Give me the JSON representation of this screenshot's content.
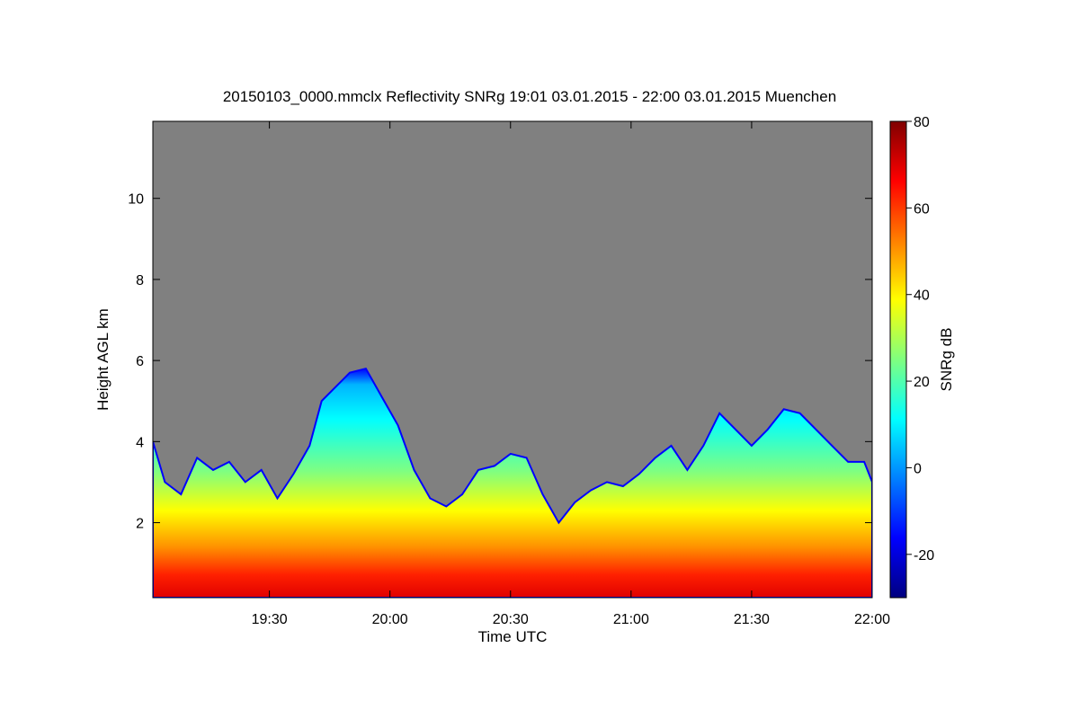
{
  "chart_data": {
    "type": "heatmap",
    "title": "20150103_0000.mmclx Reflectivity SNRg   19:01 03.01.2015 - 22:00 03.01.2015 Muenchen",
    "xlabel": "Time UTC",
    "ylabel": "Height AGL km",
    "colorbar_label": "SNRg dB",
    "x_range": [
      "19:01",
      "22:00"
    ],
    "ylim": [
      0.15,
      11.9
    ],
    "clim": [
      -30,
      80
    ],
    "colormap": "jet",
    "background_color": "#808080",
    "x_ticks": [
      {
        "value": "19:30",
        "label": "19:30"
      },
      {
        "value": "20:00",
        "label": "20:00"
      },
      {
        "value": "20:30",
        "label": "20:30"
      },
      {
        "value": "21:00",
        "label": "21:00"
      },
      {
        "value": "21:30",
        "label": "21:30"
      },
      {
        "value": "22:00",
        "label": "22:00"
      }
    ],
    "y_ticks": [
      {
        "value": 2,
        "label": "2"
      },
      {
        "value": 4,
        "label": "4"
      },
      {
        "value": 6,
        "label": "6"
      },
      {
        "value": 8,
        "label": "8"
      },
      {
        "value": 10,
        "label": "10"
      }
    ],
    "colorbar_ticks": [
      {
        "value": -20,
        "label": "-20"
      },
      {
        "value": 0,
        "label": "0"
      },
      {
        "value": 20,
        "label": "20"
      },
      {
        "value": 40,
        "label": "40"
      },
      {
        "value": 60,
        "label": "60"
      },
      {
        "value": 80,
        "label": "80"
      }
    ],
    "echo_top_km": [
      [
        "19:01",
        4.0
      ],
      [
        "19:04",
        3.0
      ],
      [
        "19:08",
        2.7
      ],
      [
        "19:12",
        3.6
      ],
      [
        "19:16",
        3.3
      ],
      [
        "19:20",
        3.5
      ],
      [
        "19:24",
        3.0
      ],
      [
        "19:28",
        3.3
      ],
      [
        "19:32",
        2.6
      ],
      [
        "19:36",
        3.2
      ],
      [
        "19:40",
        3.9
      ],
      [
        "19:43",
        5.0
      ],
      [
        "19:46",
        5.3
      ],
      [
        "19:50",
        5.7
      ],
      [
        "19:54",
        5.8
      ],
      [
        "19:58",
        5.1
      ],
      [
        "20:02",
        4.4
      ],
      [
        "20:06",
        3.3
      ],
      [
        "20:10",
        2.6
      ],
      [
        "20:14",
        2.4
      ],
      [
        "20:18",
        2.7
      ],
      [
        "20:22",
        3.3
      ],
      [
        "20:26",
        3.4
      ],
      [
        "20:30",
        3.7
      ],
      [
        "20:34",
        3.6
      ],
      [
        "20:38",
        2.7
      ],
      [
        "20:42",
        2.0
      ],
      [
        "20:46",
        2.5
      ],
      [
        "20:50",
        2.8
      ],
      [
        "20:54",
        3.0
      ],
      [
        "20:58",
        2.9
      ],
      [
        "21:02",
        3.2
      ],
      [
        "21:06",
        3.6
      ],
      [
        "21:10",
        3.9
      ],
      [
        "21:14",
        3.3
      ],
      [
        "21:18",
        3.9
      ],
      [
        "21:22",
        4.7
      ],
      [
        "21:26",
        4.3
      ],
      [
        "21:30",
        3.9
      ],
      [
        "21:34",
        4.3
      ],
      [
        "21:38",
        4.8
      ],
      [
        "21:42",
        4.7
      ],
      [
        "21:46",
        4.3
      ],
      [
        "21:50",
        3.9
      ],
      [
        "21:54",
        3.5
      ],
      [
        "21:58",
        3.5
      ],
      [
        "22:00",
        3.0
      ]
    ]
  }
}
